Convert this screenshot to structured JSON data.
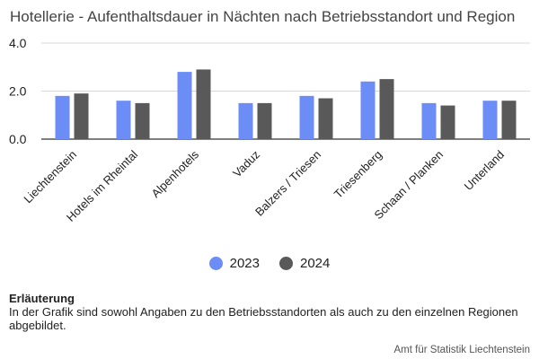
{
  "title": "Hotellerie - Aufenthaltsdauer in Nächten nach Betriebsstandort und Region",
  "chart_data": {
    "type": "bar",
    "categories": [
      "Liechtenstein",
      "Hotels im Rheintal",
      "Alpenhotels",
      "Vaduz",
      "Balzers / Triesen",
      "Triesenberg",
      "Schaan / Planken",
      "Unterland"
    ],
    "series": [
      {
        "name": "2023",
        "values": [
          1.8,
          1.6,
          2.8,
          1.5,
          1.8,
          2.4,
          1.5,
          1.6
        ],
        "color": "#6b8df5"
      },
      {
        "name": "2024",
        "values": [
          1.9,
          1.5,
          2.9,
          1.5,
          1.7,
          2.5,
          1.4,
          1.6
        ],
        "color": "#595959"
      }
    ],
    "yticks": [
      "0.0",
      "2.0",
      "4.0"
    ],
    "ylim": [
      0,
      4
    ],
    "grid": true,
    "legend": "bottom"
  },
  "note": {
    "heading": "Erläuterung",
    "text": "In der Grafik sind sowohl Angaben zu den Betriebsstandorten als auch zu den einzelnen Regionen abgebildet."
  },
  "source": "Amt für Statistik Liechtenstein"
}
